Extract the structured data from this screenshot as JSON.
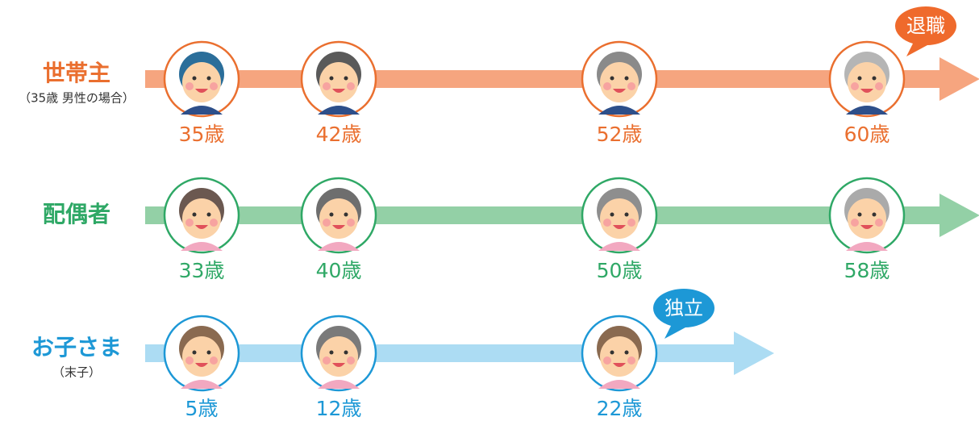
{
  "rows": [
    {
      "label": "世帯主",
      "note": "（35歳 男性の場合）",
      "ages": [
        "35歳",
        "42歳",
        "52歳",
        "60歳"
      ],
      "bubble": "退職"
    },
    {
      "label": "配偶者",
      "ages": [
        "33歳",
        "40歳",
        "50歳",
        "58歳"
      ]
    },
    {
      "label": "お子さま",
      "note": "（末子）",
      "ages": [
        "5歳",
        "12歳",
        "22歳"
      ],
      "bubble": "独立"
    }
  ]
}
